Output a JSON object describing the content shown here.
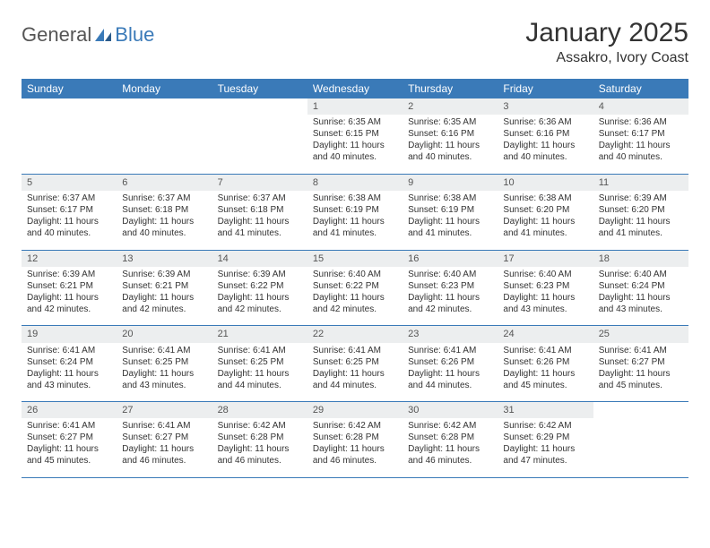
{
  "logo": {
    "part1": "General",
    "part2": "Blue"
  },
  "title": "January 2025",
  "location": "Assakro, Ivory Coast",
  "colors": {
    "header_bg": "#3a7ab8",
    "header_text": "#ffffff",
    "daynum_bg": "#eceeef",
    "body_text": "#333333",
    "rule": "#3a7ab8"
  },
  "day_headers": [
    "Sunday",
    "Monday",
    "Tuesday",
    "Wednesday",
    "Thursday",
    "Friday",
    "Saturday"
  ],
  "weeks": [
    {
      "nums": [
        "",
        "",
        "",
        "1",
        "2",
        "3",
        "4"
      ],
      "cells": [
        "",
        "",
        "",
        "Sunrise: 6:35 AM\nSunset: 6:15 PM\nDaylight: 11 hours and 40 minutes.",
        "Sunrise: 6:35 AM\nSunset: 6:16 PM\nDaylight: 11 hours and 40 minutes.",
        "Sunrise: 6:36 AM\nSunset: 6:16 PM\nDaylight: 11 hours and 40 minutes.",
        "Sunrise: 6:36 AM\nSunset: 6:17 PM\nDaylight: 11 hours and 40 minutes."
      ]
    },
    {
      "nums": [
        "5",
        "6",
        "7",
        "8",
        "9",
        "10",
        "11"
      ],
      "cells": [
        "Sunrise: 6:37 AM\nSunset: 6:17 PM\nDaylight: 11 hours and 40 minutes.",
        "Sunrise: 6:37 AM\nSunset: 6:18 PM\nDaylight: 11 hours and 40 minutes.",
        "Sunrise: 6:37 AM\nSunset: 6:18 PM\nDaylight: 11 hours and 41 minutes.",
        "Sunrise: 6:38 AM\nSunset: 6:19 PM\nDaylight: 11 hours and 41 minutes.",
        "Sunrise: 6:38 AM\nSunset: 6:19 PM\nDaylight: 11 hours and 41 minutes.",
        "Sunrise: 6:38 AM\nSunset: 6:20 PM\nDaylight: 11 hours and 41 minutes.",
        "Sunrise: 6:39 AM\nSunset: 6:20 PM\nDaylight: 11 hours and 41 minutes."
      ]
    },
    {
      "nums": [
        "12",
        "13",
        "14",
        "15",
        "16",
        "17",
        "18"
      ],
      "cells": [
        "Sunrise: 6:39 AM\nSunset: 6:21 PM\nDaylight: 11 hours and 42 minutes.",
        "Sunrise: 6:39 AM\nSunset: 6:21 PM\nDaylight: 11 hours and 42 minutes.",
        "Sunrise: 6:39 AM\nSunset: 6:22 PM\nDaylight: 11 hours and 42 minutes.",
        "Sunrise: 6:40 AM\nSunset: 6:22 PM\nDaylight: 11 hours and 42 minutes.",
        "Sunrise: 6:40 AM\nSunset: 6:23 PM\nDaylight: 11 hours and 42 minutes.",
        "Sunrise: 6:40 AM\nSunset: 6:23 PM\nDaylight: 11 hours and 43 minutes.",
        "Sunrise: 6:40 AM\nSunset: 6:24 PM\nDaylight: 11 hours and 43 minutes."
      ]
    },
    {
      "nums": [
        "19",
        "20",
        "21",
        "22",
        "23",
        "24",
        "25"
      ],
      "cells": [
        "Sunrise: 6:41 AM\nSunset: 6:24 PM\nDaylight: 11 hours and 43 minutes.",
        "Sunrise: 6:41 AM\nSunset: 6:25 PM\nDaylight: 11 hours and 43 minutes.",
        "Sunrise: 6:41 AM\nSunset: 6:25 PM\nDaylight: 11 hours and 44 minutes.",
        "Sunrise: 6:41 AM\nSunset: 6:25 PM\nDaylight: 11 hours and 44 minutes.",
        "Sunrise: 6:41 AM\nSunset: 6:26 PM\nDaylight: 11 hours and 44 minutes.",
        "Sunrise: 6:41 AM\nSunset: 6:26 PM\nDaylight: 11 hours and 45 minutes.",
        "Sunrise: 6:41 AM\nSunset: 6:27 PM\nDaylight: 11 hours and 45 minutes."
      ]
    },
    {
      "nums": [
        "26",
        "27",
        "28",
        "29",
        "30",
        "31",
        ""
      ],
      "cells": [
        "Sunrise: 6:41 AM\nSunset: 6:27 PM\nDaylight: 11 hours and 45 minutes.",
        "Sunrise: 6:41 AM\nSunset: 6:27 PM\nDaylight: 11 hours and 46 minutes.",
        "Sunrise: 6:42 AM\nSunset: 6:28 PM\nDaylight: 11 hours and 46 minutes.",
        "Sunrise: 6:42 AM\nSunset: 6:28 PM\nDaylight: 11 hours and 46 minutes.",
        "Sunrise: 6:42 AM\nSunset: 6:28 PM\nDaylight: 11 hours and 46 minutes.",
        "Sunrise: 6:42 AM\nSunset: 6:29 PM\nDaylight: 11 hours and 47 minutes.",
        ""
      ]
    }
  ]
}
